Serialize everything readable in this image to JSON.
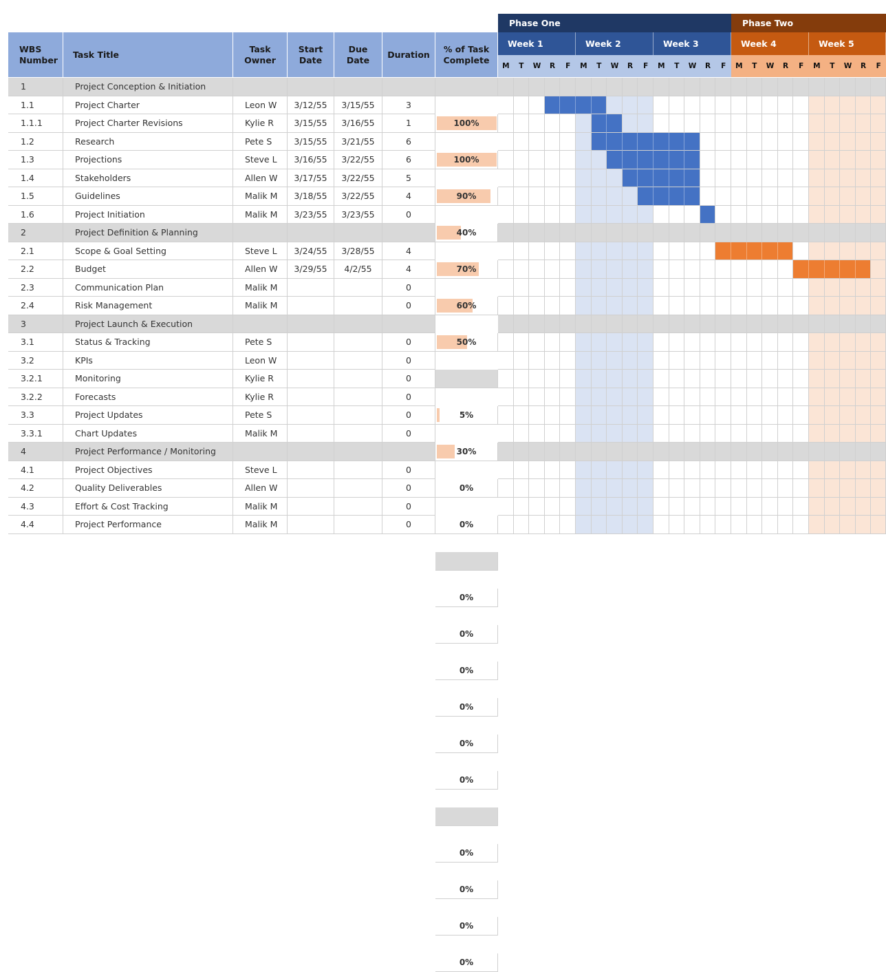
{
  "columns": {
    "wbs": "WBS\nNumber",
    "title": "Task Title",
    "owner": "Task\nOwner",
    "start": "Start\nDate",
    "due": "Due\nDate",
    "duration": "Duration",
    "pct": "% of Task\nComplete"
  },
  "phases": [
    {
      "label": "Phase One",
      "color": "#1f3864"
    },
    {
      "label": "Phase Two",
      "color": "#843c0c"
    }
  ],
  "weeks": [
    {
      "label": "Week 1",
      "color": "#2f5597"
    },
    {
      "label": "Week 2",
      "color": "#2f5597"
    },
    {
      "label": "Week 3",
      "color": "#2f5597"
    },
    {
      "label": "Week 4",
      "color": "#c55a11"
    },
    {
      "label": "Week 5",
      "color": "#c55a11"
    }
  ],
  "day_letters": [
    "M",
    "T",
    "W",
    "R",
    "F"
  ],
  "colors": {
    "phase_one_day_bg": "#b4c7e7",
    "phase_two_day_bg": "#f4b183",
    "bar_blue": "#4472c4",
    "bar_orange": "#ed7d31",
    "shade_blue": "#dae3f3",
    "shade_orange": "#fbe5d6",
    "section_bg": "#d9d9d9",
    "pct_fill": "#f8cbad"
  },
  "shaded_weeks": [
    {
      "week": 2,
      "color": "#dae3f3"
    },
    {
      "week": 5,
      "color": "#fbe5d6"
    }
  ],
  "rows": [
    {
      "wbs": "1",
      "title": "Project Conception & Initiation",
      "section": true
    },
    {
      "wbs": "1.1",
      "title": "Project Charter",
      "owner": "Leon W",
      "start": "3/12/55",
      "due": "3/15/55",
      "duration": "3",
      "pct": "100%",
      "progress": 1.0,
      "bar": {
        "from": 4,
        "to": 7,
        "color": "blue"
      }
    },
    {
      "wbs": "1.1.1",
      "title": "Project Charter Revisions",
      "owner": "Kylie R",
      "start": "3/15/55",
      "due": "3/16/55",
      "duration": "1",
      "pct": "100%",
      "progress": 1.0,
      "bar": {
        "from": 7,
        "to": 8,
        "color": "blue"
      }
    },
    {
      "wbs": "1.2",
      "title": "Research",
      "owner": "Pete S",
      "start": "3/15/55",
      "due": "3/21/55",
      "duration": "6",
      "pct": "90%",
      "progress": 0.9,
      "bar": {
        "from": 7,
        "to": 13,
        "color": "blue"
      }
    },
    {
      "wbs": "1.3",
      "title": "Projections",
      "owner": "Steve L",
      "start": "3/16/55",
      "due": "3/22/55",
      "duration": "6",
      "pct": "40%",
      "progress": 0.4,
      "bar": {
        "from": 8,
        "to": 13,
        "color": "blue"
      }
    },
    {
      "wbs": "1.4",
      "title": "Stakeholders",
      "owner": "Allen W",
      "start": "3/17/55",
      "due": "3/22/55",
      "duration": "5",
      "pct": "70%",
      "progress": 0.7,
      "bar": {
        "from": 9,
        "to": 13,
        "color": "blue"
      }
    },
    {
      "wbs": "1.5",
      "title": "Guidelines",
      "owner": "Malik M",
      "start": "3/18/55",
      "due": "3/22/55",
      "duration": "4",
      "pct": "60%",
      "progress": 0.6,
      "bar": {
        "from": 10,
        "to": 13,
        "color": "blue"
      }
    },
    {
      "wbs": "1.6",
      "title": "Project Initiation",
      "owner": "Malik M",
      "start": "3/23/55",
      "due": "3/23/55",
      "duration": "0",
      "pct": "50%",
      "progress": 0.5,
      "bar": {
        "from": 14,
        "to": 14,
        "color": "blue"
      }
    },
    {
      "wbs": "2",
      "title": "Project Definition & Planning",
      "section": true
    },
    {
      "wbs": "2.1",
      "title": "Scope & Goal Setting",
      "owner": "Steve L",
      "start": "3/24/55",
      "due": "3/28/55",
      "duration": "4",
      "pct": "5%",
      "progress": 0.05,
      "bar": {
        "from": 15,
        "to": 19,
        "color": "orange"
      }
    },
    {
      "wbs": "2.2",
      "title": "Budget",
      "owner": "Allen W",
      "start": "3/29/55",
      "due": "4/2/55",
      "duration": "4",
      "pct": "30%",
      "progress": 0.3,
      "bar": {
        "from": 20,
        "to": 24,
        "color": "orange"
      }
    },
    {
      "wbs": "2.3",
      "title": "Communication Plan",
      "owner": "Malik M",
      "start": "",
      "due": "",
      "duration": "0",
      "pct": "0%",
      "progress": 0
    },
    {
      "wbs": "2.4",
      "title": "Risk Management",
      "owner": "Malik M",
      "start": "",
      "due": "",
      "duration": "0",
      "pct": "0%",
      "progress": 0
    },
    {
      "wbs": "3",
      "title": "Project Launch & Execution",
      "section": true
    },
    {
      "wbs": "3.1",
      "title": "Status & Tracking",
      "owner": "Pete S",
      "start": "",
      "due": "",
      "duration": "0",
      "pct": "0%",
      "progress": 0
    },
    {
      "wbs": "3.2",
      "title": "KPIs",
      "owner": "Leon W",
      "start": "",
      "due": "",
      "duration": "0",
      "pct": "0%",
      "progress": 0
    },
    {
      "wbs": "3.2.1",
      "title": "Monitoring",
      "owner": "Kylie R",
      "start": "",
      "due": "",
      "duration": "0",
      "pct": "0%",
      "progress": 0
    },
    {
      "wbs": "3.2.2",
      "title": "Forecasts",
      "owner": "Kylie R",
      "start": "",
      "due": "",
      "duration": "0",
      "pct": "0%",
      "progress": 0
    },
    {
      "wbs": "3.3",
      "title": "Project Updates",
      "owner": "Pete S",
      "start": "",
      "due": "",
      "duration": "0",
      "pct": "0%",
      "progress": 0
    },
    {
      "wbs": "3.3.1",
      "title": "Chart Updates",
      "owner": "Malik M",
      "start": "",
      "due": "",
      "duration": "0",
      "pct": "0%",
      "progress": 0
    },
    {
      "wbs": "4",
      "title": "Project Performance / Monitoring",
      "section": true
    },
    {
      "wbs": "4.1",
      "title": "Project Objectives",
      "owner": "Steve L",
      "start": "",
      "due": "",
      "duration": "0",
      "pct": "0%",
      "progress": 0
    },
    {
      "wbs": "4.2",
      "title": "Quality Deliverables",
      "owner": "Allen W",
      "start": "",
      "due": "",
      "duration": "0",
      "pct": "0%",
      "progress": 0
    },
    {
      "wbs": "4.3",
      "title": "Effort & Cost Tracking",
      "owner": "Malik M",
      "start": "",
      "due": "",
      "duration": "0",
      "pct": "0%",
      "progress": 0
    },
    {
      "wbs": "4.4",
      "title": "Project Performance",
      "owner": "Malik M",
      "start": "",
      "due": "",
      "duration": "0",
      "pct": "0%",
      "progress": 0
    }
  ]
}
